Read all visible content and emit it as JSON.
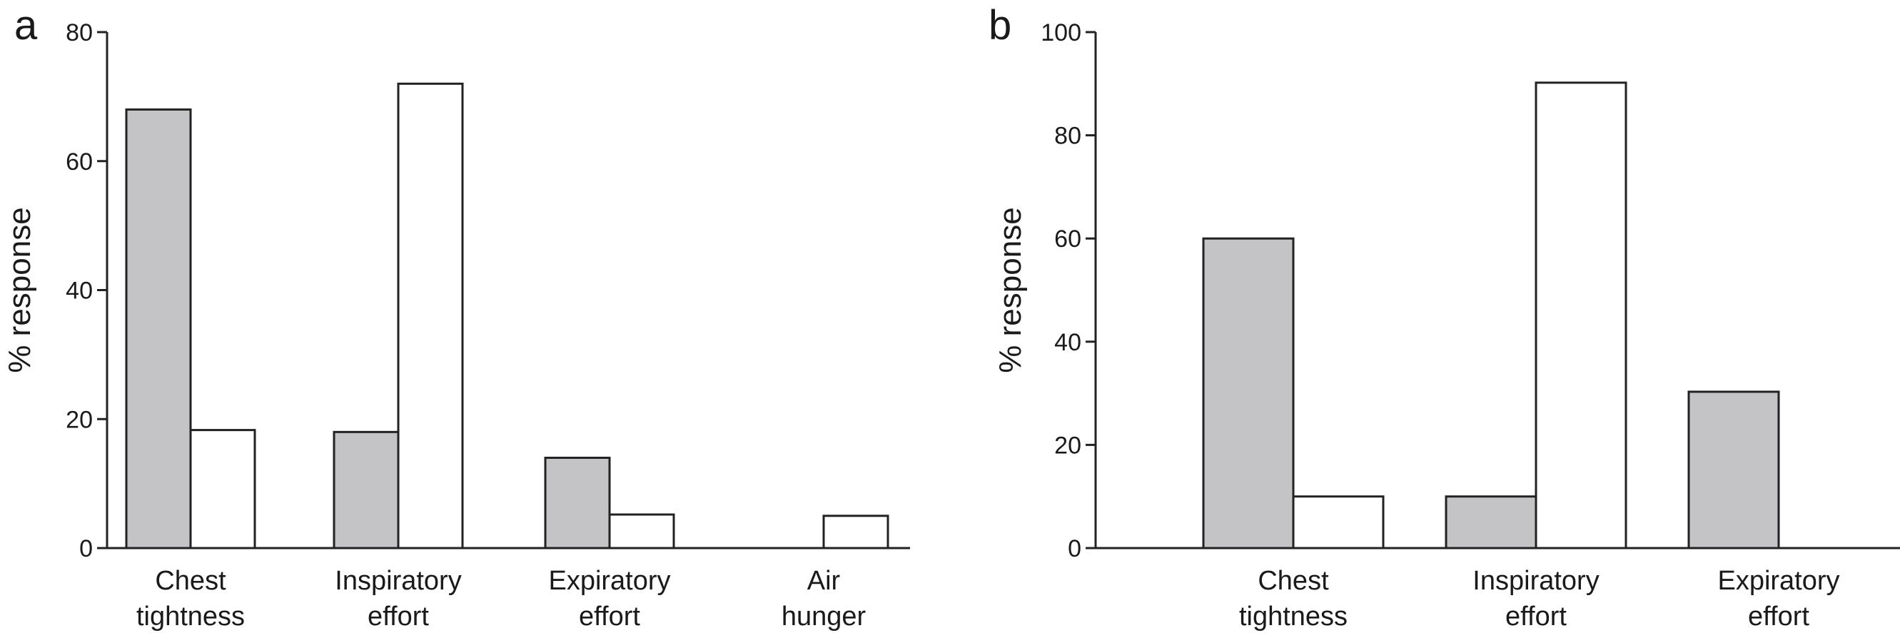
{
  "colors": {
    "shaded": "#c4c4c6",
    "open": "#ffffff",
    "stroke": "#222222"
  },
  "chart_data": [
    {
      "panel": "a",
      "type": "bar",
      "ylabel": "% response",
      "ylim": [
        0,
        80
      ],
      "yticks": [
        0,
        20,
        40,
        60,
        80
      ],
      "categories": [
        [
          "Chest",
          "tightness"
        ],
        [
          "Inspiratory",
          "effort"
        ],
        [
          "Expiratory",
          "effort"
        ],
        [
          "Air",
          "hunger"
        ]
      ],
      "series": [
        {
          "color": "shaded",
          "values": [
            68,
            18,
            14,
            null
          ]
        },
        {
          "color": "open",
          "values": [
            18.3,
            72,
            5.2,
            5
          ]
        }
      ]
    },
    {
      "panel": "b",
      "type": "bar",
      "ylabel": "% response",
      "ylim": [
        0,
        100
      ],
      "yticks": [
        0,
        20,
        40,
        60,
        80,
        100
      ],
      "categories": [
        [
          "Chest",
          "tightness"
        ],
        [
          "Inspiratory",
          "effort"
        ],
        [
          "Expiratory",
          "effort"
        ]
      ],
      "series": [
        {
          "color": "shaded",
          "values": [
            60,
            10,
            30.3
          ]
        },
        {
          "color": "open",
          "values": [
            10,
            90.2,
            null
          ]
        }
      ]
    }
  ]
}
